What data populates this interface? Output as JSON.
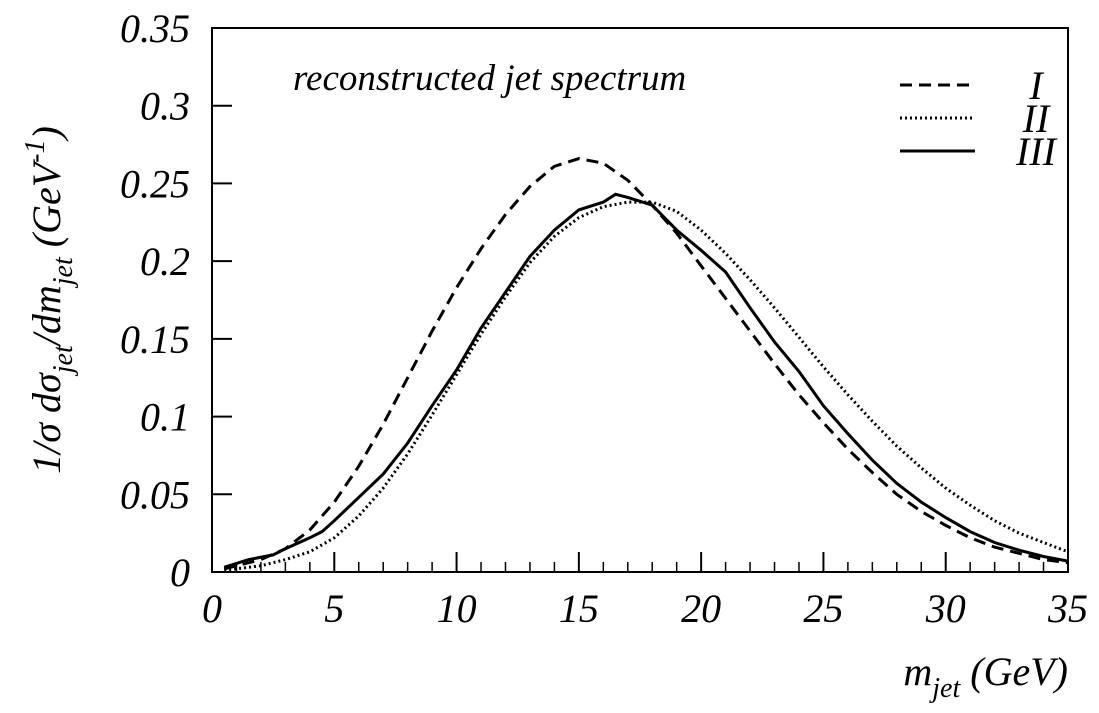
{
  "chart_data": {
    "type": "line",
    "title": "reconstructed jet spectrum",
    "x_label": [
      "m",
      "jet",
      " (GeV)"
    ],
    "y_label": [
      "1/σ dσ",
      "jet",
      "/dm",
      "jet",
      " (GeV",
      "-1",
      ")"
    ],
    "xlim": [
      0,
      35
    ],
    "ylim": [
      0,
      0.35
    ],
    "xticks": [
      0,
      5,
      10,
      15,
      20,
      25,
      30,
      35
    ],
    "xminorticks": [
      1,
      2,
      3,
      4,
      6,
      7,
      8,
      9,
      11,
      12,
      13,
      14,
      16,
      17,
      18,
      19,
      21,
      22,
      23,
      24,
      26,
      27,
      28,
      29,
      31,
      32,
      33,
      34
    ],
    "yticks": [
      0,
      0.05,
      0.1,
      0.15,
      0.2,
      0.25,
      0.3,
      0.35
    ],
    "legend": "top-right",
    "series": [
      {
        "name": "I",
        "color": "#000000",
        "dash": "dashed",
        "x": [
          0.5,
          2,
          3,
          4,
          5,
          6,
          7,
          8,
          9,
          10,
          11,
          12,
          13,
          14,
          15,
          16,
          17,
          18,
          19,
          20,
          21,
          22,
          23,
          24,
          25,
          26,
          27,
          28,
          29,
          30,
          31,
          32,
          33,
          34,
          35
        ],
        "values": [
          0.002,
          0.008,
          0.015,
          0.027,
          0.045,
          0.068,
          0.095,
          0.125,
          0.155,
          0.183,
          0.208,
          0.23,
          0.248,
          0.261,
          0.266,
          0.263,
          0.252,
          0.236,
          0.218,
          0.197,
          0.176,
          0.155,
          0.134,
          0.114,
          0.096,
          0.079,
          0.064,
          0.05,
          0.039,
          0.03,
          0.022,
          0.016,
          0.012,
          0.008,
          0.006
        ]
      },
      {
        "name": "II",
        "color": "#000000",
        "dash": "dotted",
        "x": [
          0.5,
          2,
          3,
          4,
          5,
          6,
          7,
          8,
          9,
          10,
          11,
          12,
          13,
          14,
          15,
          16,
          17,
          18,
          19,
          20,
          21,
          22,
          23,
          24,
          25,
          26,
          27,
          28,
          29,
          30,
          31,
          32,
          33,
          34,
          35
        ],
        "values": [
          0.001,
          0.004,
          0.008,
          0.013,
          0.022,
          0.036,
          0.054,
          0.076,
          0.101,
          0.127,
          0.153,
          0.177,
          0.199,
          0.216,
          0.228,
          0.235,
          0.238,
          0.238,
          0.232,
          0.22,
          0.205,
          0.188,
          0.17,
          0.151,
          0.132,
          0.114,
          0.097,
          0.081,
          0.067,
          0.054,
          0.043,
          0.033,
          0.025,
          0.019,
          0.013
        ]
      },
      {
        "name": "III",
        "color": "#000000",
        "dash": "solid",
        "x": [
          0.5,
          1.5,
          2.5,
          3,
          4,
          4.5,
          5,
          6,
          7,
          8,
          9,
          10,
          11,
          12,
          13,
          14,
          15,
          16,
          16.5,
          17,
          18,
          19,
          20,
          21,
          22,
          23,
          24,
          25,
          26,
          27,
          28,
          29,
          30,
          31,
          32,
          33,
          34,
          35
        ],
        "values": [
          0.003,
          0.008,
          0.011,
          0.015,
          0.022,
          0.026,
          0.033,
          0.048,
          0.063,
          0.083,
          0.107,
          0.13,
          0.157,
          0.18,
          0.203,
          0.22,
          0.233,
          0.238,
          0.243,
          0.241,
          0.236,
          0.22,
          0.207,
          0.193,
          0.17,
          0.148,
          0.129,
          0.107,
          0.089,
          0.072,
          0.057,
          0.045,
          0.035,
          0.026,
          0.019,
          0.014,
          0.01,
          0.007
        ]
      }
    ]
  }
}
